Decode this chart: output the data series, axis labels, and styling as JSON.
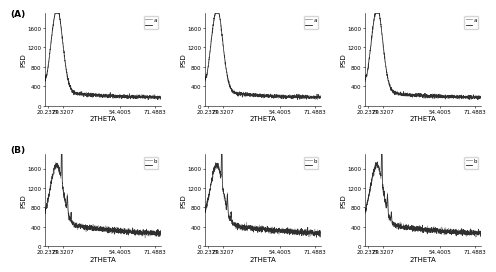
{
  "x_ticks": [
    20.2379,
    27.3207,
    54.4005,
    71.4883
  ],
  "x_tick_labels": [
    "20.2379",
    "27.3207",
    "54.4005",
    "71.4883"
  ],
  "xlim": [
    18.5,
    74
  ],
  "ylim_A": [
    0,
    1900
  ],
  "ylim_B": [
    0,
    1900
  ],
  "yticks_A": [
    0,
    400,
    800,
    1200,
    1600
  ],
  "yticks_B": [
    0,
    400,
    800,
    1200,
    1600
  ],
  "ylabel": "PSD",
  "xlabel": "2THETA",
  "row_labels": [
    "(A)",
    "(B)"
  ],
  "legend_label_A": "a",
  "legend_label_B": "b",
  "line_color_dark": "#222222",
  "line_color_light": "#999999",
  "bg_color": "#ffffff",
  "tick_fontsize": 4,
  "label_fontsize": 5,
  "legend_fontsize": 4
}
